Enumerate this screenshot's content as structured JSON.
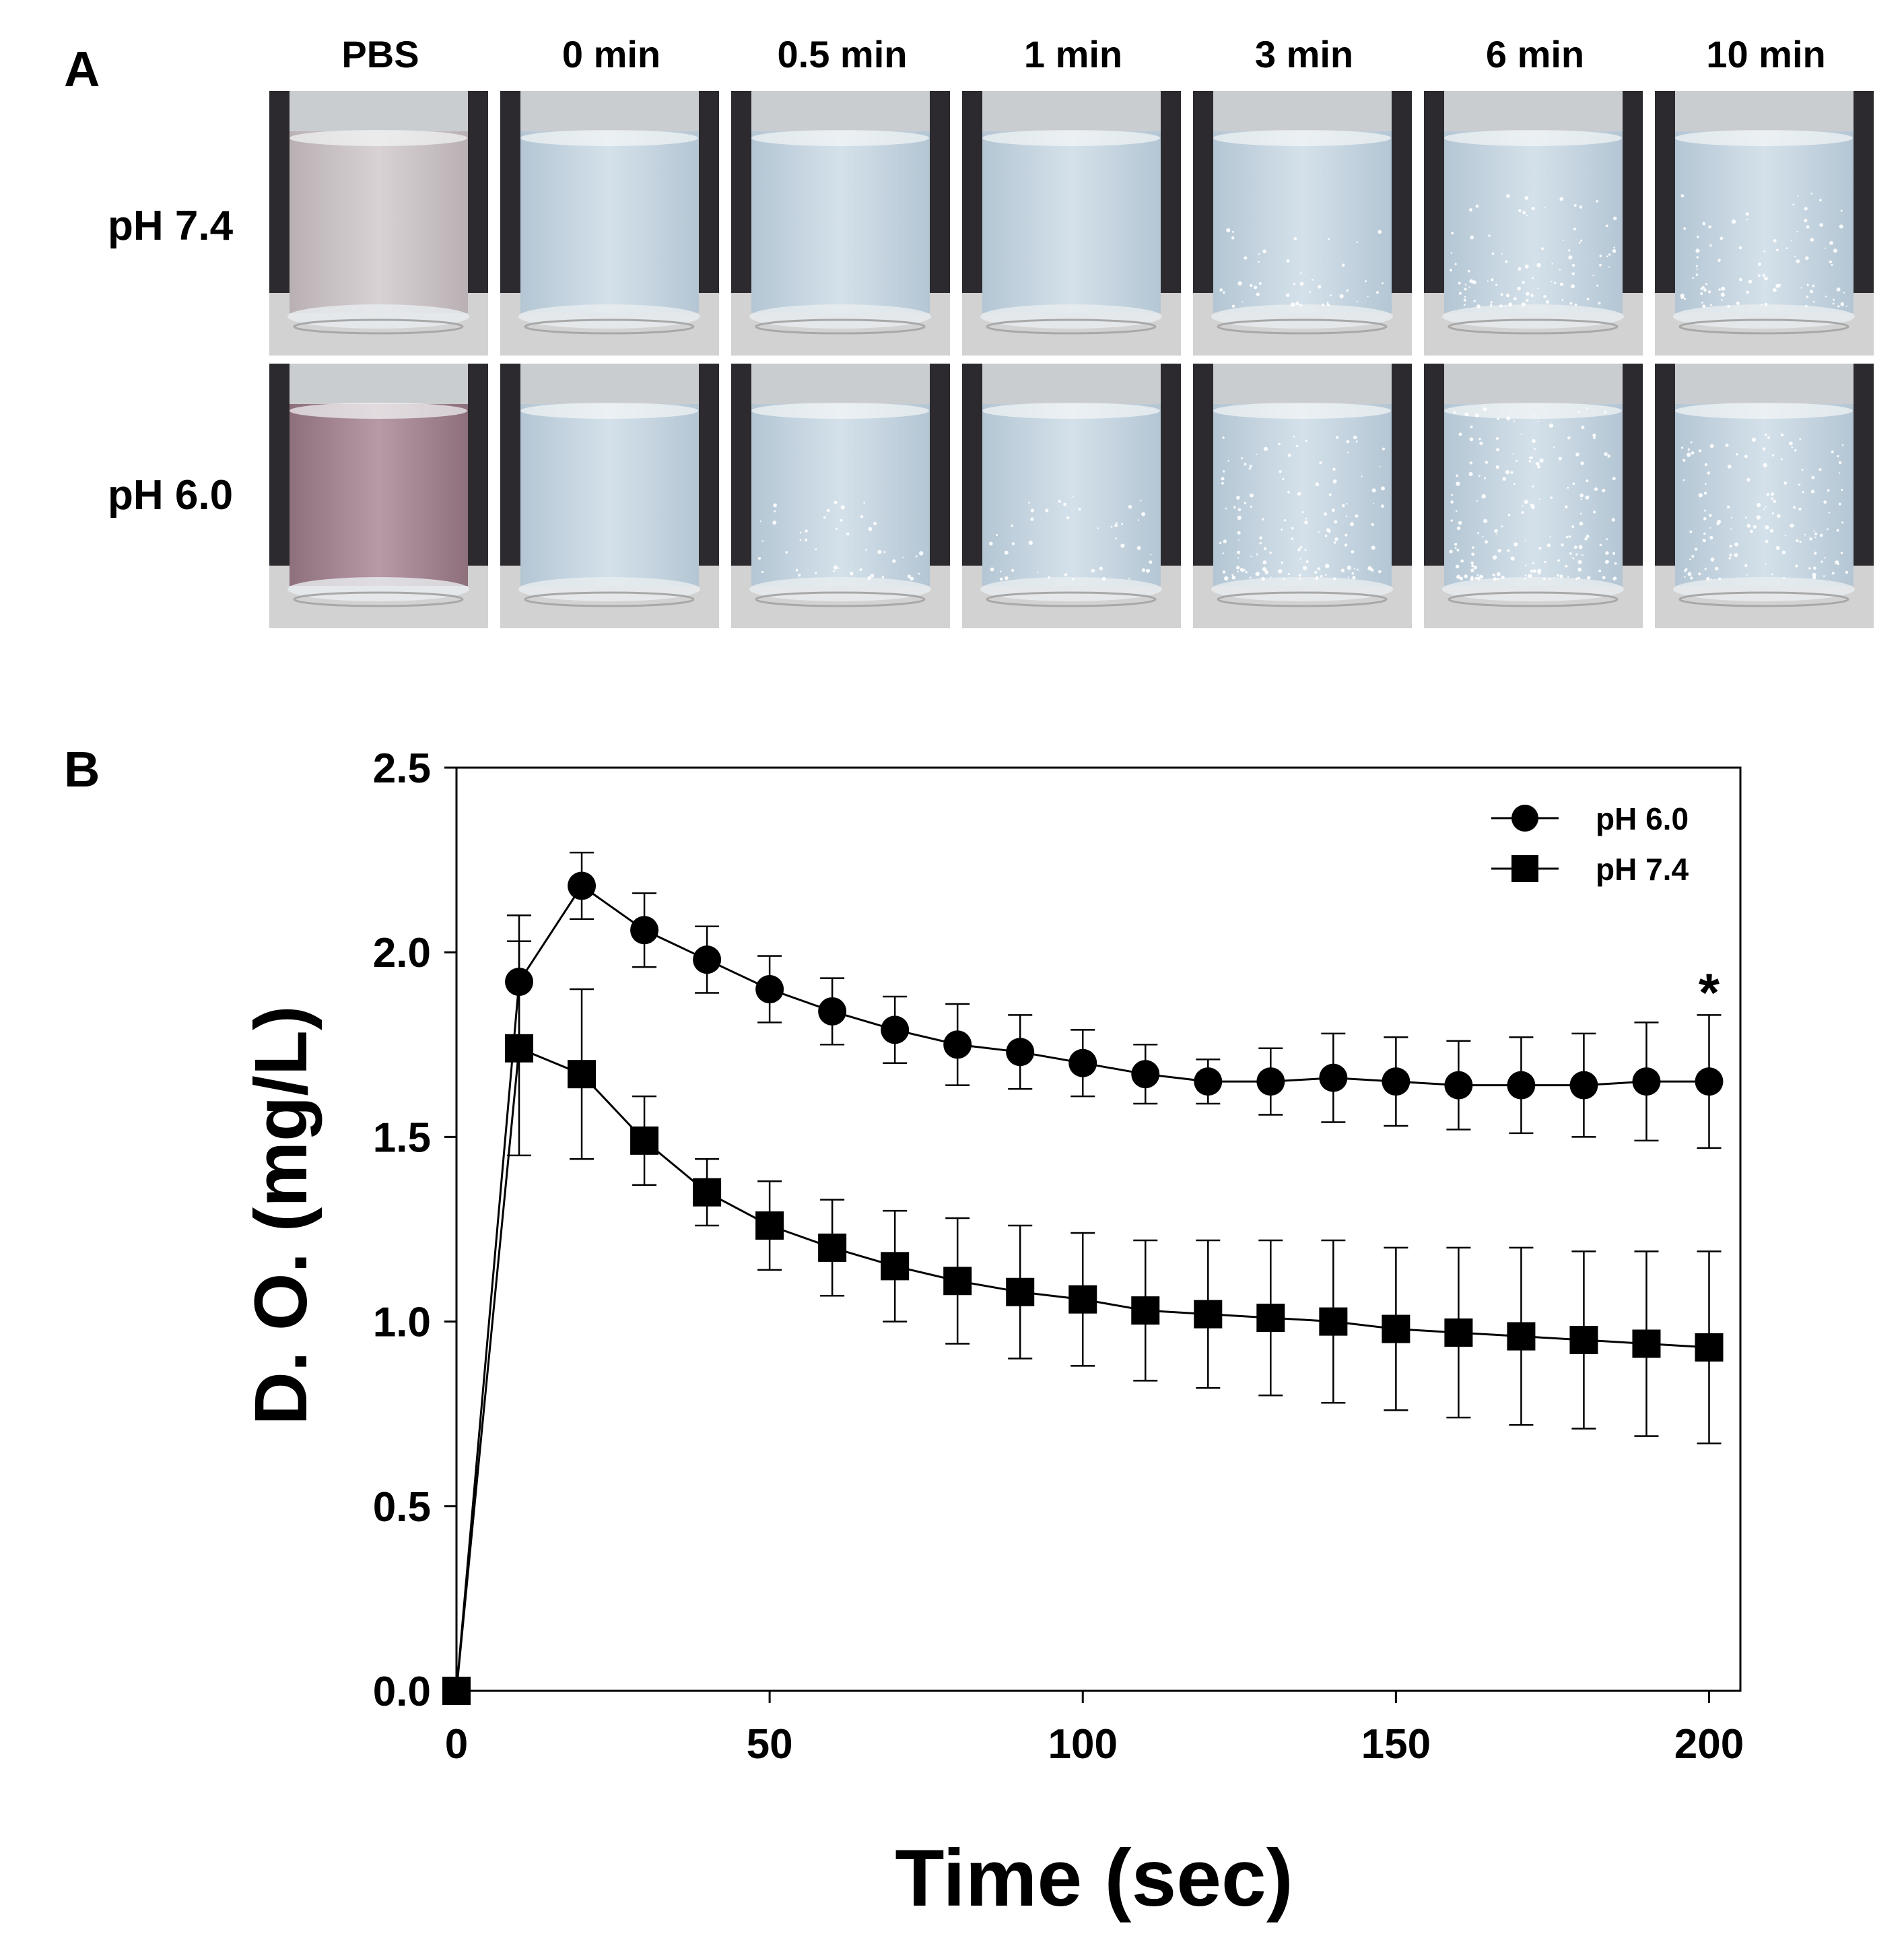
{
  "panels": {
    "a_label": "A",
    "b_label": "B"
  },
  "photo_grid": {
    "columns": [
      "PBS",
      "0 min",
      "0.5 min",
      "1 min",
      "3 min",
      "6 min",
      "10 min"
    ],
    "rows": [
      "pH 7.4",
      "pH 6.0"
    ],
    "bubble_levels": [
      [
        0,
        0,
        0,
        0,
        1,
        2,
        2
      ],
      [
        0,
        0,
        1,
        1,
        3,
        4,
        3
      ]
    ]
  },
  "chart_data": {
    "type": "line",
    "title": "",
    "xlabel": "Time (sec)",
    "ylabel": "D. O. (mg/L)",
    "xlim": [
      0,
      205
    ],
    "ylim": [
      0,
      2.5
    ],
    "xticks": [
      0,
      50,
      100,
      150,
      200
    ],
    "yticks": [
      0.0,
      0.5,
      1.0,
      1.5,
      2.0,
      2.5
    ],
    "xtick_labels": [
      "0",
      "50",
      "100",
      "150",
      "200"
    ],
    "ytick_labels": [
      "0.0",
      "0.5",
      "1.0",
      "1.5",
      "2.0",
      "2.5"
    ],
    "x": [
      0,
      10,
      20,
      30,
      40,
      50,
      60,
      70,
      80,
      90,
      100,
      110,
      120,
      130,
      140,
      150,
      160,
      170,
      180,
      190,
      200
    ],
    "series": [
      {
        "name": "pH 6.0",
        "marker": "circle",
        "values": [
          0.0,
          1.92,
          2.18,
          2.06,
          1.98,
          1.9,
          1.84,
          1.79,
          1.75,
          1.73,
          1.7,
          1.67,
          1.65,
          1.65,
          1.66,
          1.65,
          1.64,
          1.64,
          1.64,
          1.65,
          1.65
        ],
        "errors": [
          0.0,
          0.18,
          0.09,
          0.1,
          0.09,
          0.09,
          0.09,
          0.09,
          0.11,
          0.1,
          0.09,
          0.08,
          0.06,
          0.09,
          0.12,
          0.12,
          0.12,
          0.13,
          0.14,
          0.16,
          0.18
        ]
      },
      {
        "name": "pH 7.4",
        "marker": "square",
        "values": [
          0.0,
          1.74,
          1.67,
          1.49,
          1.35,
          1.26,
          1.2,
          1.15,
          1.11,
          1.08,
          1.06,
          1.03,
          1.02,
          1.01,
          1.0,
          0.98,
          0.97,
          0.96,
          0.95,
          0.94,
          0.93
        ],
        "errors": [
          0.0,
          0.29,
          0.23,
          0.12,
          0.09,
          0.12,
          0.13,
          0.15,
          0.17,
          0.18,
          0.18,
          0.19,
          0.2,
          0.21,
          0.22,
          0.22,
          0.23,
          0.24,
          0.24,
          0.25,
          0.26
        ]
      }
    ],
    "legend": {
      "placement": "top-right",
      "entries": [
        "pH 6.0",
        "pH 7.4"
      ]
    },
    "annotations": [
      {
        "text": "*",
        "x": 200,
        "y": 1.95
      }
    ]
  }
}
